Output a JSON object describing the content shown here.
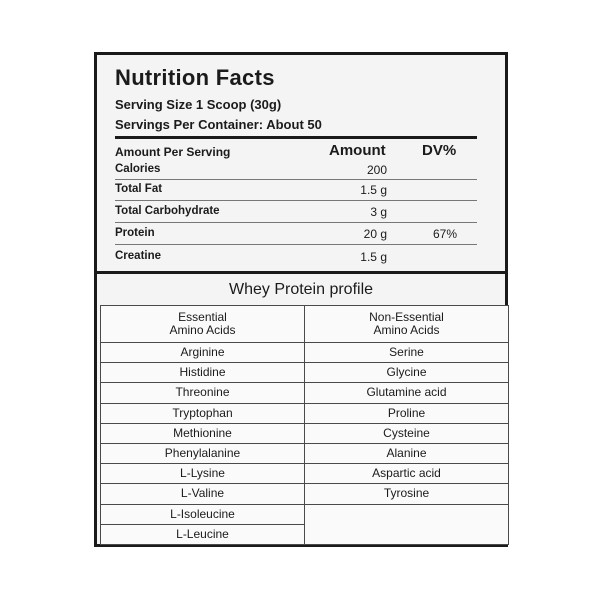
{
  "header": {
    "title": "Nutrition Facts",
    "serving_size": "Serving Size 1 Scoop (30g)",
    "servings_per_container": "Servings Per Container:  About 50"
  },
  "facts": {
    "column_label": "Amount Per Serving",
    "amount_label": "Amount",
    "dv_label": "DV%",
    "rows": [
      {
        "name": "Calories",
        "amount": "200"
      },
      {
        "name": "Total Fat",
        "amount": "1.5 g"
      },
      {
        "name": "Total Carbohydrate",
        "amount": "3 g"
      },
      {
        "name": "Protein",
        "amount": "20 g",
        "dv": "67%"
      },
      {
        "name": "Creatine",
        "amount": "1.5 g"
      }
    ]
  },
  "profile": {
    "title": "Whey Protein profile",
    "essential_header": [
      "Essential",
      "Amino Acids"
    ],
    "non_essential_header": [
      "Non-Essential",
      "Amino Acids"
    ],
    "essential": [
      "Arginine",
      "Histidine",
      "Threonine",
      "Tryptophan",
      "Methionine",
      "Phenylalanine",
      "L-Lysine",
      "L-Valine",
      "L-Isoleucine",
      "L-Leucine"
    ],
    "non_essential": [
      "Serine",
      "Glycine",
      "Glutamine acid",
      "Proline",
      "Cysteine",
      "Alanine",
      "Aspartic acid",
      "Tyrosine"
    ]
  }
}
